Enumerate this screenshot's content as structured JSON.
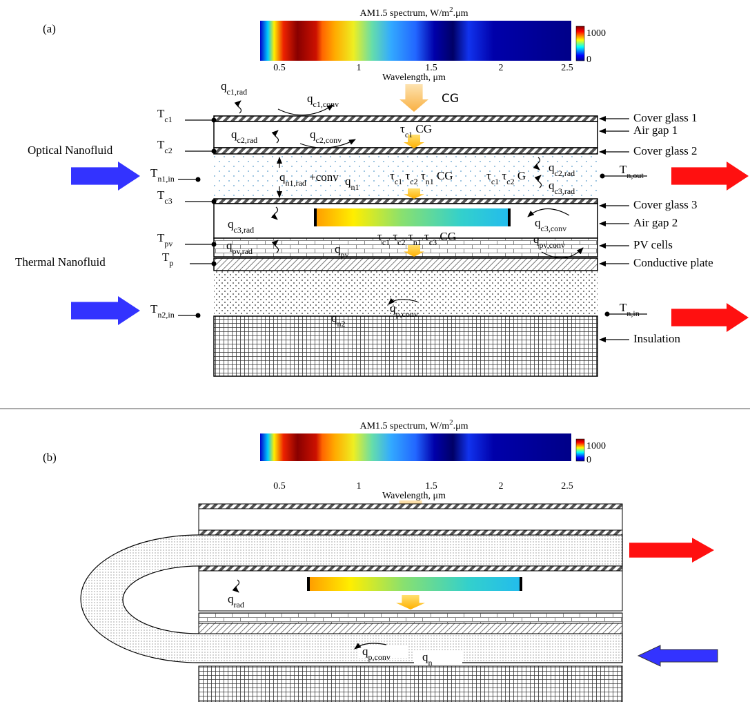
{
  "panel_a": {
    "label": "(a)",
    "spectrum": {
      "title": {
        "text": "AM1.5 spectrum, W/m",
        "sup": "2",
        "after": ".μm"
      },
      "xlabel": "Wavelength, μm",
      "xticks": [
        "0.5",
        "1",
        "1.5",
        "2",
        "2.5"
      ],
      "colorbar_ticks": [
        "1000",
        "0"
      ]
    },
    "top_label": "CG",
    "fluid_labels": [
      "Optical Nanofluid",
      "Thermal Nanofluid"
    ],
    "temperatures": [
      {
        "text": "T",
        "sub": "c1"
      },
      {
        "text": "T",
        "sub": "c2"
      },
      {
        "text": "T",
        "sub": "n1,in"
      },
      {
        "text": "T",
        "sub": "c3"
      },
      {
        "text": "T",
        "sub": "pv"
      },
      {
        "text": "T",
        "sub": "p"
      },
      {
        "text": "T",
        "sub": "n2,in"
      },
      {
        "text": "T",
        "sub": "n,out"
      },
      {
        "text": "T",
        "sub": "n,in"
      }
    ],
    "layers": [
      "Cover glass 1",
      "Air gap 1",
      "Cover glass 2",
      "Cover glass 3",
      "Air gap 2",
      "PV cells",
      "Conductive plate",
      "Insulation"
    ],
    "fluxes": [
      {
        "text": "q",
        "sub": "c1,rad"
      },
      {
        "text": "q",
        "sub": "c1,conv"
      },
      {
        "text": "q",
        "sub": "c2,rad"
      },
      {
        "text": "q",
        "sub": "c2,conv"
      },
      {
        "text": "q",
        "sub": "n1,rad",
        "after": " +conv"
      },
      {
        "text": "q",
        "sub": "n1"
      },
      {
        "text": "q",
        "sub": "c2,rad"
      },
      {
        "text": "q",
        "sub": "c3,rad"
      },
      {
        "text": "q",
        "sub": "c3,rad"
      },
      {
        "text": "q",
        "sub": "pv,rad"
      },
      {
        "text": "q",
        "sub": "c3,conv"
      },
      {
        "text": "q",
        "sub": "pv,conv"
      },
      {
        "text": "q",
        "sub": "pv"
      },
      {
        "text": "q",
        "sub": "p,conv"
      },
      {
        "text": "q",
        "sub": "n2"
      }
    ],
    "transmissions": [
      [
        {
          "text": "τ",
          "sub": "c1"
        },
        {
          "text": " CG"
        }
      ],
      [
        {
          "text": "τ",
          "sub": "c1"
        },
        {
          "text": " τ",
          "sub": "c2"
        },
        {
          "text": " τ",
          "sub": "n1"
        },
        {
          "text": " CG"
        }
      ],
      [
        {
          "text": "τ",
          "sub": "c1"
        },
        {
          "text": " τ",
          "sub": "c2"
        },
        {
          "text": " G"
        }
      ],
      [
        {
          "text": "τ",
          "sub": "c1"
        },
        {
          "text": " τ",
          "sub": "c2"
        },
        {
          "text": " τ",
          "sub": "n1"
        },
        {
          "text": " τ",
          "sub": "c3"
        },
        {
          "text": " CG"
        }
      ]
    ]
  },
  "panel_b": {
    "label": "(b)",
    "spectrum": {
      "title": {
        "text": "AM1.5 spectrum, W/m",
        "sup": "2",
        "after": ".μm"
      },
      "xlabel": "Wavelength, μm",
      "xticks": [
        "0.5",
        "1",
        "1.5",
        "2",
        "2.5"
      ],
      "colorbar_ticks": [
        "1000",
        "0"
      ]
    },
    "fluxes": [
      {
        "text": "q",
        "sub": "rad"
      },
      {
        "text": "q",
        "sub": "p,conv"
      },
      {
        "text": "q",
        "sub": "n"
      }
    ]
  }
}
